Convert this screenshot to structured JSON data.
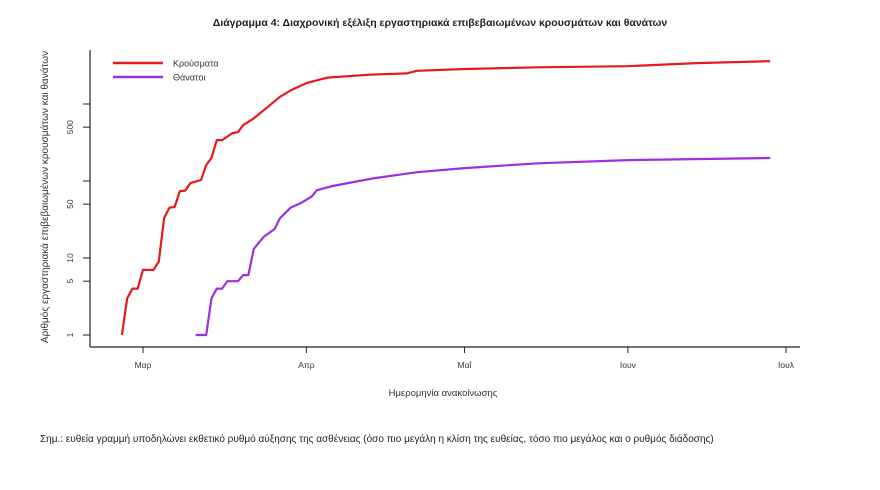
{
  "chart_data": {
    "type": "line",
    "title": "Διάγραμμα 4: Διαχρονική εξέλιξη εργαστηριακά επιβεβαιωμένων κρουσμάτων και θανάτων",
    "xlabel": "Ημερομηνία ανακοίνωσης",
    "ylabel": "Αριθμός εργαστηριακά επιβεβαιωμένων κρουσμάτων και θανάτων",
    "y_scale": "log",
    "ylim": [
      1,
      4000
    ],
    "y_ticks": [
      1,
      5,
      10,
      50,
      100,
      500,
      1000
    ],
    "y_tick_labels": [
      "1",
      "5",
      "10",
      "50",
      "",
      "500",
      ""
    ],
    "x_ticks": [
      "2020-03-01",
      "2020-04-01",
      "2020-05-01",
      "2020-06-01",
      "2020-07-01"
    ],
    "x_tick_labels": [
      "Μαρ",
      "Απρ",
      "Μαΐ",
      "Ιουν",
      "Ιουλ"
    ],
    "xlim": [
      "2020-02-22",
      "2020-07-04"
    ],
    "grid": false,
    "legend_position": "top-left",
    "series": [
      {
        "name": "Κρούσματα",
        "color": "#e41a1c",
        "x": [
          "2020-02-26",
          "2020-02-27",
          "2020-02-28",
          "2020-02-29",
          "2020-03-01",
          "2020-03-03",
          "2020-03-04",
          "2020-03-05",
          "2020-03-06",
          "2020-03-07",
          "2020-03-08",
          "2020-03-09",
          "2020-03-10",
          "2020-03-12",
          "2020-03-13",
          "2020-03-14",
          "2020-03-15",
          "2020-03-16",
          "2020-03-18",
          "2020-03-19",
          "2020-03-20",
          "2020-03-22",
          "2020-03-24",
          "2020-03-27",
          "2020-03-29",
          "2020-04-01",
          "2020-04-05",
          "2020-04-13",
          "2020-04-20",
          "2020-04-22",
          "2020-05-01",
          "2020-05-15",
          "2020-06-01",
          "2020-06-14",
          "2020-06-28"
        ],
        "values": [
          1,
          3,
          4,
          4,
          7,
          7,
          9,
          33,
          45,
          46,
          74,
          75,
          94,
          103,
          161,
          200,
          340,
          340,
          420,
          430,
          530,
          650,
          840,
          1240,
          1500,
          1870,
          2200,
          2400,
          2500,
          2700,
          2850,
          3000,
          3100,
          3400,
          3600
        ]
      },
      {
        "name": "Θάνατοι",
        "color": "#9b30e0",
        "x": [
          "2020-03-11",
          "2020-03-13",
          "2020-03-14",
          "2020-03-15",
          "2020-03-16",
          "2020-03-17",
          "2020-03-18",
          "2020-03-19",
          "2020-03-20",
          "2020-03-21",
          "2020-03-22",
          "2020-03-23",
          "2020-03-24",
          "2020-03-26",
          "2020-03-27",
          "2020-03-29",
          "2020-03-31",
          "2020-04-02",
          "2020-04-03",
          "2020-04-06",
          "2020-04-10",
          "2020-04-14",
          "2020-04-22",
          "2020-05-01",
          "2020-05-15",
          "2020-06-01",
          "2020-06-28"
        ],
        "values": [
          1,
          1,
          3,
          4,
          4,
          5,
          5,
          5,
          6,
          6,
          13,
          16,
          19,
          24,
          33,
          45,
          52,
          63,
          76,
          86,
          97,
          109,
          130,
          147,
          170,
          187,
          199
        ]
      }
    ]
  },
  "note": "Σημ.: ευθεία γραμμή υποδηλώνει εκθετικό ρυθμό αύξησης της ασθένειας (όσο πιο μεγάλη η κλίση της ευθείας, τόσο πιο μεγάλος και ο ρυθμός διάδοσης)"
}
